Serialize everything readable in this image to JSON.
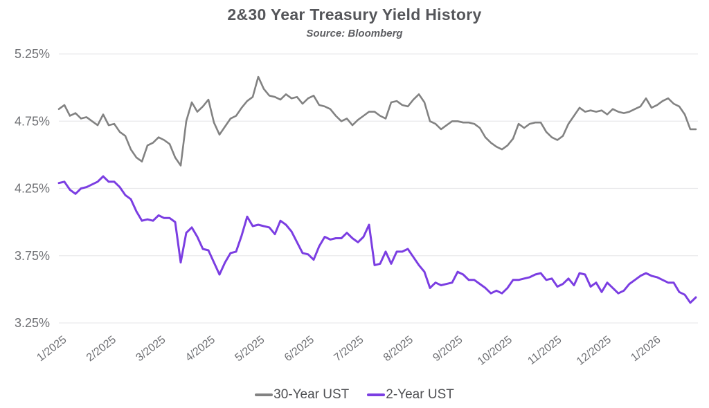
{
  "chart": {
    "title": "2&30 Year Treasury Yield History",
    "subtitle": "Source: Bloomberg",
    "colors": {
      "background": "#ffffff",
      "title_text": "#55565a",
      "axis_text": "#6e6f73",
      "gridline": "#e9e9ec",
      "series_30y": "#828282",
      "series_2y": "#7b3ee2"
    }
  },
  "chart_data": {
    "type": "line",
    "title": "2&30 Year Treasury Yield History",
    "subtitle": "Source: Bloomberg",
    "xlabel": "",
    "ylabel": "",
    "ylim": [
      3.25,
      5.25
    ],
    "y_ticks": [
      5.25,
      4.75,
      4.25,
      3.75,
      3.25
    ],
    "y_tick_labels": [
      "5.25%",
      "4.75%",
      "4.25%",
      "3.75%",
      "3.25%"
    ],
    "x_tick_labels": [
      "1/2025",
      "2/2025",
      "3/2025",
      "4/2025",
      "5/2025",
      "6/2025",
      "7/2025",
      "8/2025",
      "9/2025",
      "10/2025",
      "11/2025",
      "12/2025",
      "1/2026"
    ],
    "x_range_months": [
      0,
      12.87
    ],
    "grid": "horizontal-only",
    "legend_position": "bottom",
    "series": [
      {
        "name": "30-Year UST",
        "color": "#828282",
        "values": [
          4.84,
          4.87,
          4.79,
          4.81,
          4.77,
          4.78,
          4.75,
          4.72,
          4.8,
          4.72,
          4.73,
          4.67,
          4.64,
          4.54,
          4.48,
          4.45,
          4.57,
          4.59,
          4.63,
          4.61,
          4.58,
          4.48,
          4.42,
          4.75,
          4.89,
          4.82,
          4.86,
          4.91,
          4.74,
          4.65,
          4.71,
          4.77,
          4.79,
          4.85,
          4.9,
          4.93,
          5.08,
          4.99,
          4.94,
          4.93,
          4.91,
          4.95,
          4.92,
          4.93,
          4.88,
          4.92,
          4.94,
          4.87,
          4.86,
          4.84,
          4.79,
          4.75,
          4.77,
          4.72,
          4.76,
          4.79,
          4.82,
          4.82,
          4.79,
          4.77,
          4.89,
          4.9,
          4.87,
          4.86,
          4.91,
          4.95,
          4.89,
          4.75,
          4.73,
          4.69,
          4.72,
          4.75,
          4.75,
          4.74,
          4.74,
          4.73,
          4.7,
          4.63,
          4.59,
          4.56,
          4.54,
          4.57,
          4.62,
          4.73,
          4.7,
          4.73,
          4.74,
          4.74,
          4.67,
          4.63,
          4.61,
          4.64,
          4.73,
          4.79,
          4.85,
          4.82,
          4.83,
          4.82,
          4.83,
          4.8,
          4.84,
          4.82,
          4.81,
          4.82,
          4.84,
          4.86,
          4.92,
          4.85,
          4.87,
          4.9,
          4.92,
          4.88,
          4.86,
          4.8,
          4.69,
          4.69
        ]
      },
      {
        "name": "2-Year UST",
        "color": "#7b3ee2",
        "values": [
          4.29,
          4.3,
          4.24,
          4.21,
          4.25,
          4.26,
          4.28,
          4.3,
          4.34,
          4.3,
          4.3,
          4.26,
          4.2,
          4.17,
          4.08,
          4.01,
          4.02,
          4.01,
          4.05,
          4.03,
          4.03,
          4.0,
          3.7,
          3.92,
          3.96,
          3.89,
          3.8,
          3.79,
          3.7,
          3.61,
          3.7,
          3.77,
          3.78,
          3.9,
          4.04,
          3.97,
          3.98,
          3.97,
          3.96,
          3.91,
          4.01,
          3.98,
          3.93,
          3.85,
          3.77,
          3.76,
          3.72,
          3.82,
          3.89,
          3.87,
          3.88,
          3.88,
          3.92,
          3.88,
          3.85,
          3.89,
          3.98,
          3.68,
          3.69,
          3.78,
          3.69,
          3.78,
          3.78,
          3.8,
          3.74,
          3.68,
          3.63,
          3.51,
          3.55,
          3.53,
          3.54,
          3.55,
          3.63,
          3.61,
          3.57,
          3.57,
          3.54,
          3.51,
          3.47,
          3.49,
          3.47,
          3.51,
          3.57,
          3.57,
          3.58,
          3.59,
          3.61,
          3.62,
          3.57,
          3.58,
          3.52,
          3.54,
          3.58,
          3.53,
          3.62,
          3.61,
          3.52,
          3.55,
          3.48,
          3.55,
          3.51,
          3.47,
          3.49,
          3.54,
          3.57,
          3.6,
          3.62,
          3.6,
          3.59,
          3.57,
          3.55,
          3.55,
          3.48,
          3.46,
          3.4,
          3.44
        ]
      }
    ]
  }
}
